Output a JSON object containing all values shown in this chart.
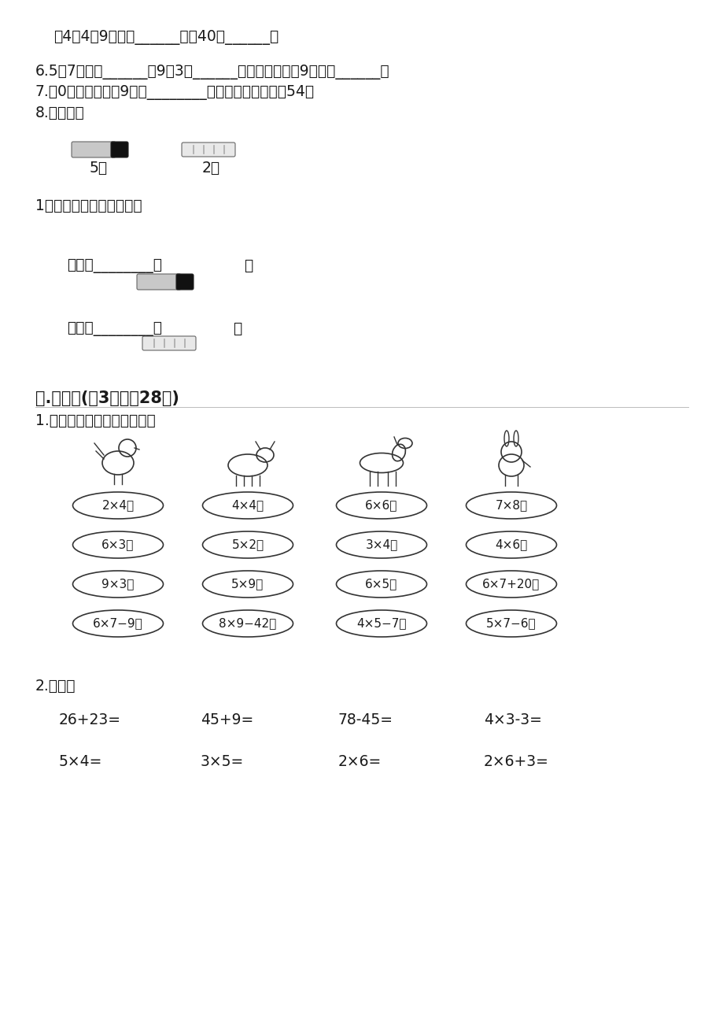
{
  "bg_color": "#ffffff",
  "text_color": "#1a1a1a",
  "line1": "（4）4个9相加是______，比40少______。",
  "line2": "6.5个7相加得______；9乘3得______；两个因数都是9，积是______。",
  "line3": "7.从0开始，连续加9，加________次以后，它们的和是54。",
  "line4": "8.填一填。",
  "item5jiao": "5角",
  "item2jiao": "2角",
  "question_buy": "1元可以买哪些学习用品？",
  "buy_line1_a": "可以买",
  "buy_line1_b": "把",
  "buy_semicolon": "；",
  "buy_line2_a": "可以买",
  "buy_line2_b": "盒",
  "buy_period": "。",
  "section4_title": "四.计算题(关3题，內28分)",
  "section4_q1": "1.比比看哪只小动物先算完。",
  "ovals": [
    [
      "2×4＝",
      "4×4＝",
      "6×6＝",
      "7×8＝"
    ],
    [
      "6×3＝",
      "5×2＝",
      "3×4＝",
      "4×6＝"
    ],
    [
      "9×3＝",
      "5×9＝",
      "6×5＝",
      "6×7+20＝"
    ],
    [
      "6×7−9＝",
      "8×9−42＝",
      "4×5−7＝",
      "5×7−6＝"
    ]
  ],
  "section4_q2": "2.口算。",
  "calc_row1": [
    "26+23=",
    "45+9=",
    "78-45=",
    "4×3-3="
  ],
  "calc_row2": [
    "5×4=",
    "3×5=",
    "2×6=",
    "2×6+3="
  ]
}
